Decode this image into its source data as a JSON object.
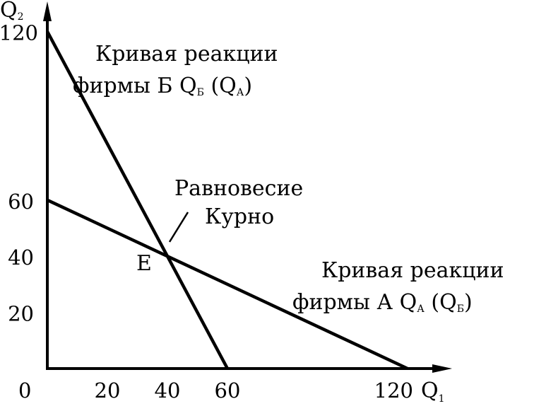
{
  "chart_data": {
    "type": "line",
    "xlabel": "Q",
    "xlabel_sub": "1",
    "ylabel": "Q",
    "ylabel_sub": "2",
    "origin_label": "0",
    "xlim": [
      0,
      130
    ],
    "ylim": [
      0,
      130
    ],
    "x_ticks": [
      20,
      40,
      60,
      120
    ],
    "y_ticks": [
      20,
      40,
      60,
      120
    ],
    "grid": false,
    "series": [
      {
        "x": [
          0,
          60
        ],
        "y": [
          120,
          0
        ]
      },
      {
        "x": [
          0,
          120
        ],
        "y": [
          60,
          0
        ]
      }
    ],
    "annotations": {
      "curve_b": {
        "line1": "Кривая реакции",
        "line2_main": "фирмы Б Q",
        "line2_sub1": "Б",
        "line2_mid": " (Q",
        "line2_sub2": "А",
        "line2_end": ")"
      },
      "curve_a": {
        "line1": "Кривая реакции",
        "line2_main": "фирмы А Q",
        "line2_sub1": "А",
        "line2_mid": " (Q",
        "line2_sub2": "Б",
        "line2_end": ")"
      },
      "equilibrium": {
        "line1": "Равновесие",
        "line2": "Курно",
        "point_label": "E",
        "x": 40,
        "y": 40
      }
    }
  }
}
